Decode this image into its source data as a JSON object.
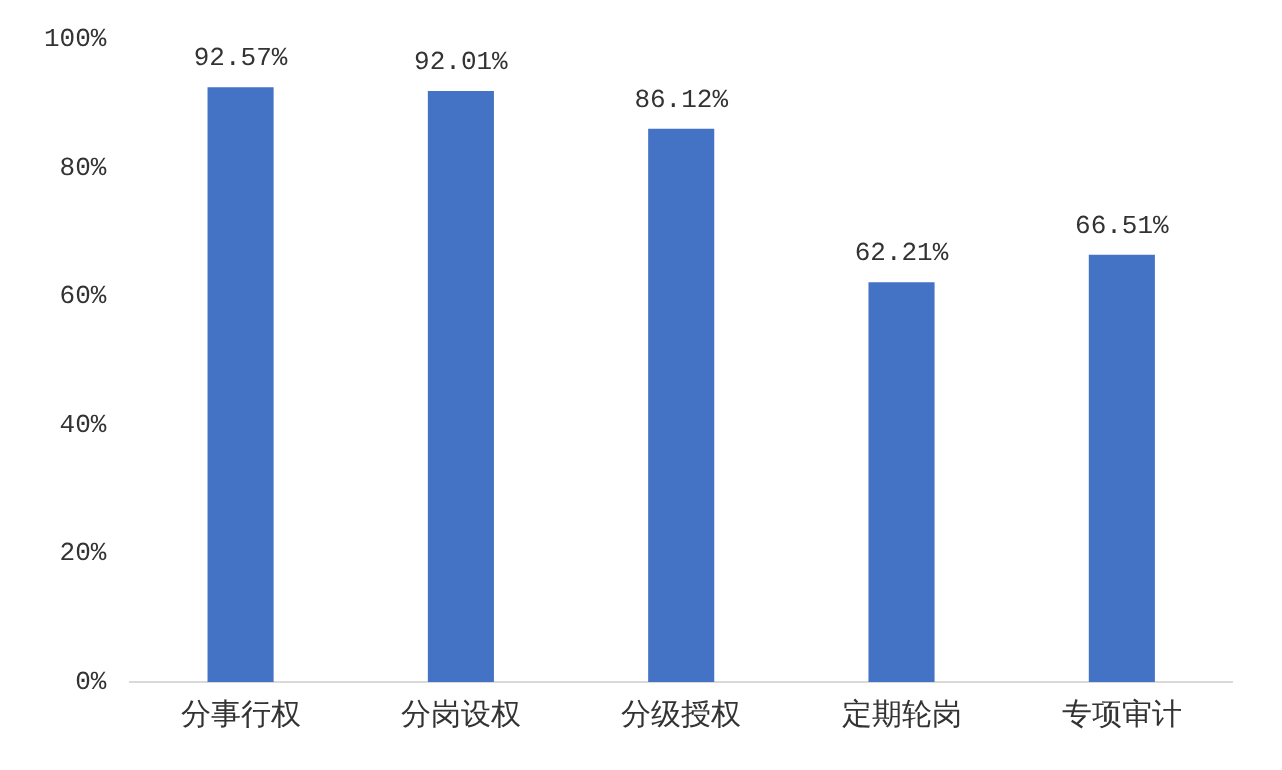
{
  "chart_data": {
    "type": "bar",
    "categories": [
      "分事行权",
      "分岗设权",
      "分级授权",
      "定期轮岗",
      "专项审计"
    ],
    "values": [
      92.57,
      92.01,
      86.12,
      62.21,
      66.51
    ],
    "value_labels": [
      "92.57%",
      "92.01%",
      "86.12%",
      "62.21%",
      "66.51%"
    ],
    "color": "#4472c4",
    "ylim": [
      0,
      100
    ],
    "yticks": [
      {
        "value": 0,
        "label": "0%"
      },
      {
        "value": 20,
        "label": "20%"
      },
      {
        "value": 40,
        "label": "40%"
      },
      {
        "value": 60,
        "label": "60%"
      },
      {
        "value": 80,
        "label": "80%"
      },
      {
        "value": 100,
        "label": "100%"
      }
    ],
    "grid": false,
    "legend": false
  }
}
